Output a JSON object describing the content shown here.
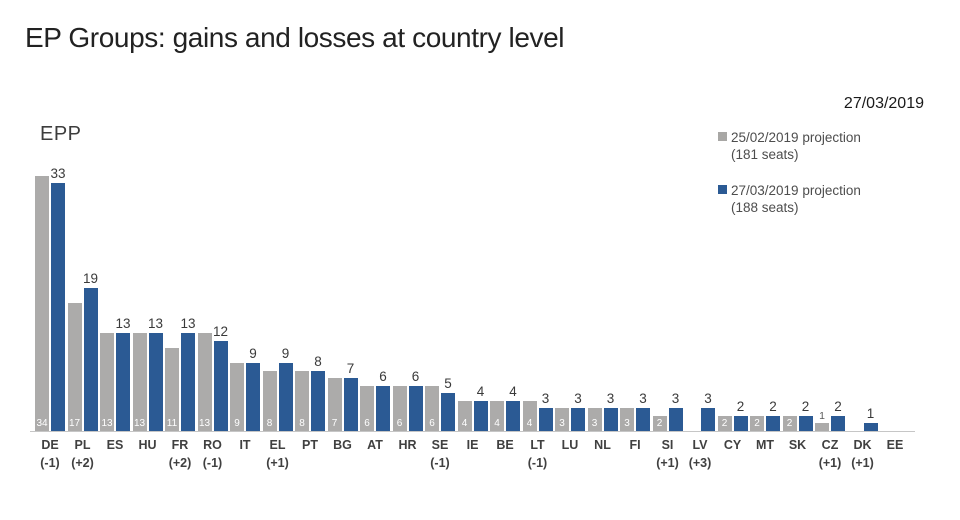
{
  "title": "EP Groups: gains and losses at country level",
  "report_date": "27/03/2019",
  "group_label": "EPP",
  "legend": [
    {
      "label": "25/02/2019  projection",
      "sublabel": "(181 seats)",
      "color": "#a8a7a5"
    },
    {
      "label": "27/03/2019 projection",
      "sublabel": "(188 seats)",
      "color": "#2b5a94"
    }
  ],
  "colors": {
    "previous": "#acabaa",
    "current": "#2b5a94",
    "axis": "#c6c6c6"
  },
  "chart_data": {
    "type": "bar",
    "title": "EPP",
    "xlabel": "",
    "ylabel": "",
    "ylim": [
      0,
      34
    ],
    "grid": false,
    "legend_position": "top-right",
    "categories": [
      "DE",
      "PL",
      "ES",
      "HU",
      "FR",
      "RO",
      "IT",
      "EL",
      "PT",
      "BG",
      "AT",
      "HR",
      "SE",
      "IE",
      "BE",
      "LT",
      "LU",
      "NL",
      "FI",
      "SI",
      "LV",
      "CY",
      "MT",
      "SK",
      "CZ",
      "DK",
      "EE"
    ],
    "series": [
      {
        "name": "25/02/2019 projection (181 seats)",
        "values": [
          34,
          17,
          13,
          13,
          11,
          13,
          9,
          8,
          8,
          7,
          6,
          6,
          6,
          4,
          4,
          4,
          3,
          3,
          3,
          2,
          0,
          2,
          2,
          2,
          1,
          0,
          0
        ]
      },
      {
        "name": "27/03/2019 projection (188 seats)",
        "values": [
          33,
          19,
          13,
          13,
          13,
          12,
          9,
          9,
          8,
          7,
          6,
          6,
          5,
          4,
          4,
          3,
          3,
          3,
          3,
          3,
          3,
          2,
          2,
          2,
          2,
          1,
          0
        ]
      }
    ],
    "changes": [
      "(-1)",
      "(+2)",
      "",
      "",
      "(+2)",
      "(-1)",
      "",
      "(+1)",
      "",
      "",
      "",
      "",
      "(-1)",
      "",
      "",
      "(-1)",
      "",
      "",
      "",
      "(+1)",
      "(+3)",
      "",
      "",
      "",
      "(+1)",
      "(+1)",
      ""
    ]
  }
}
